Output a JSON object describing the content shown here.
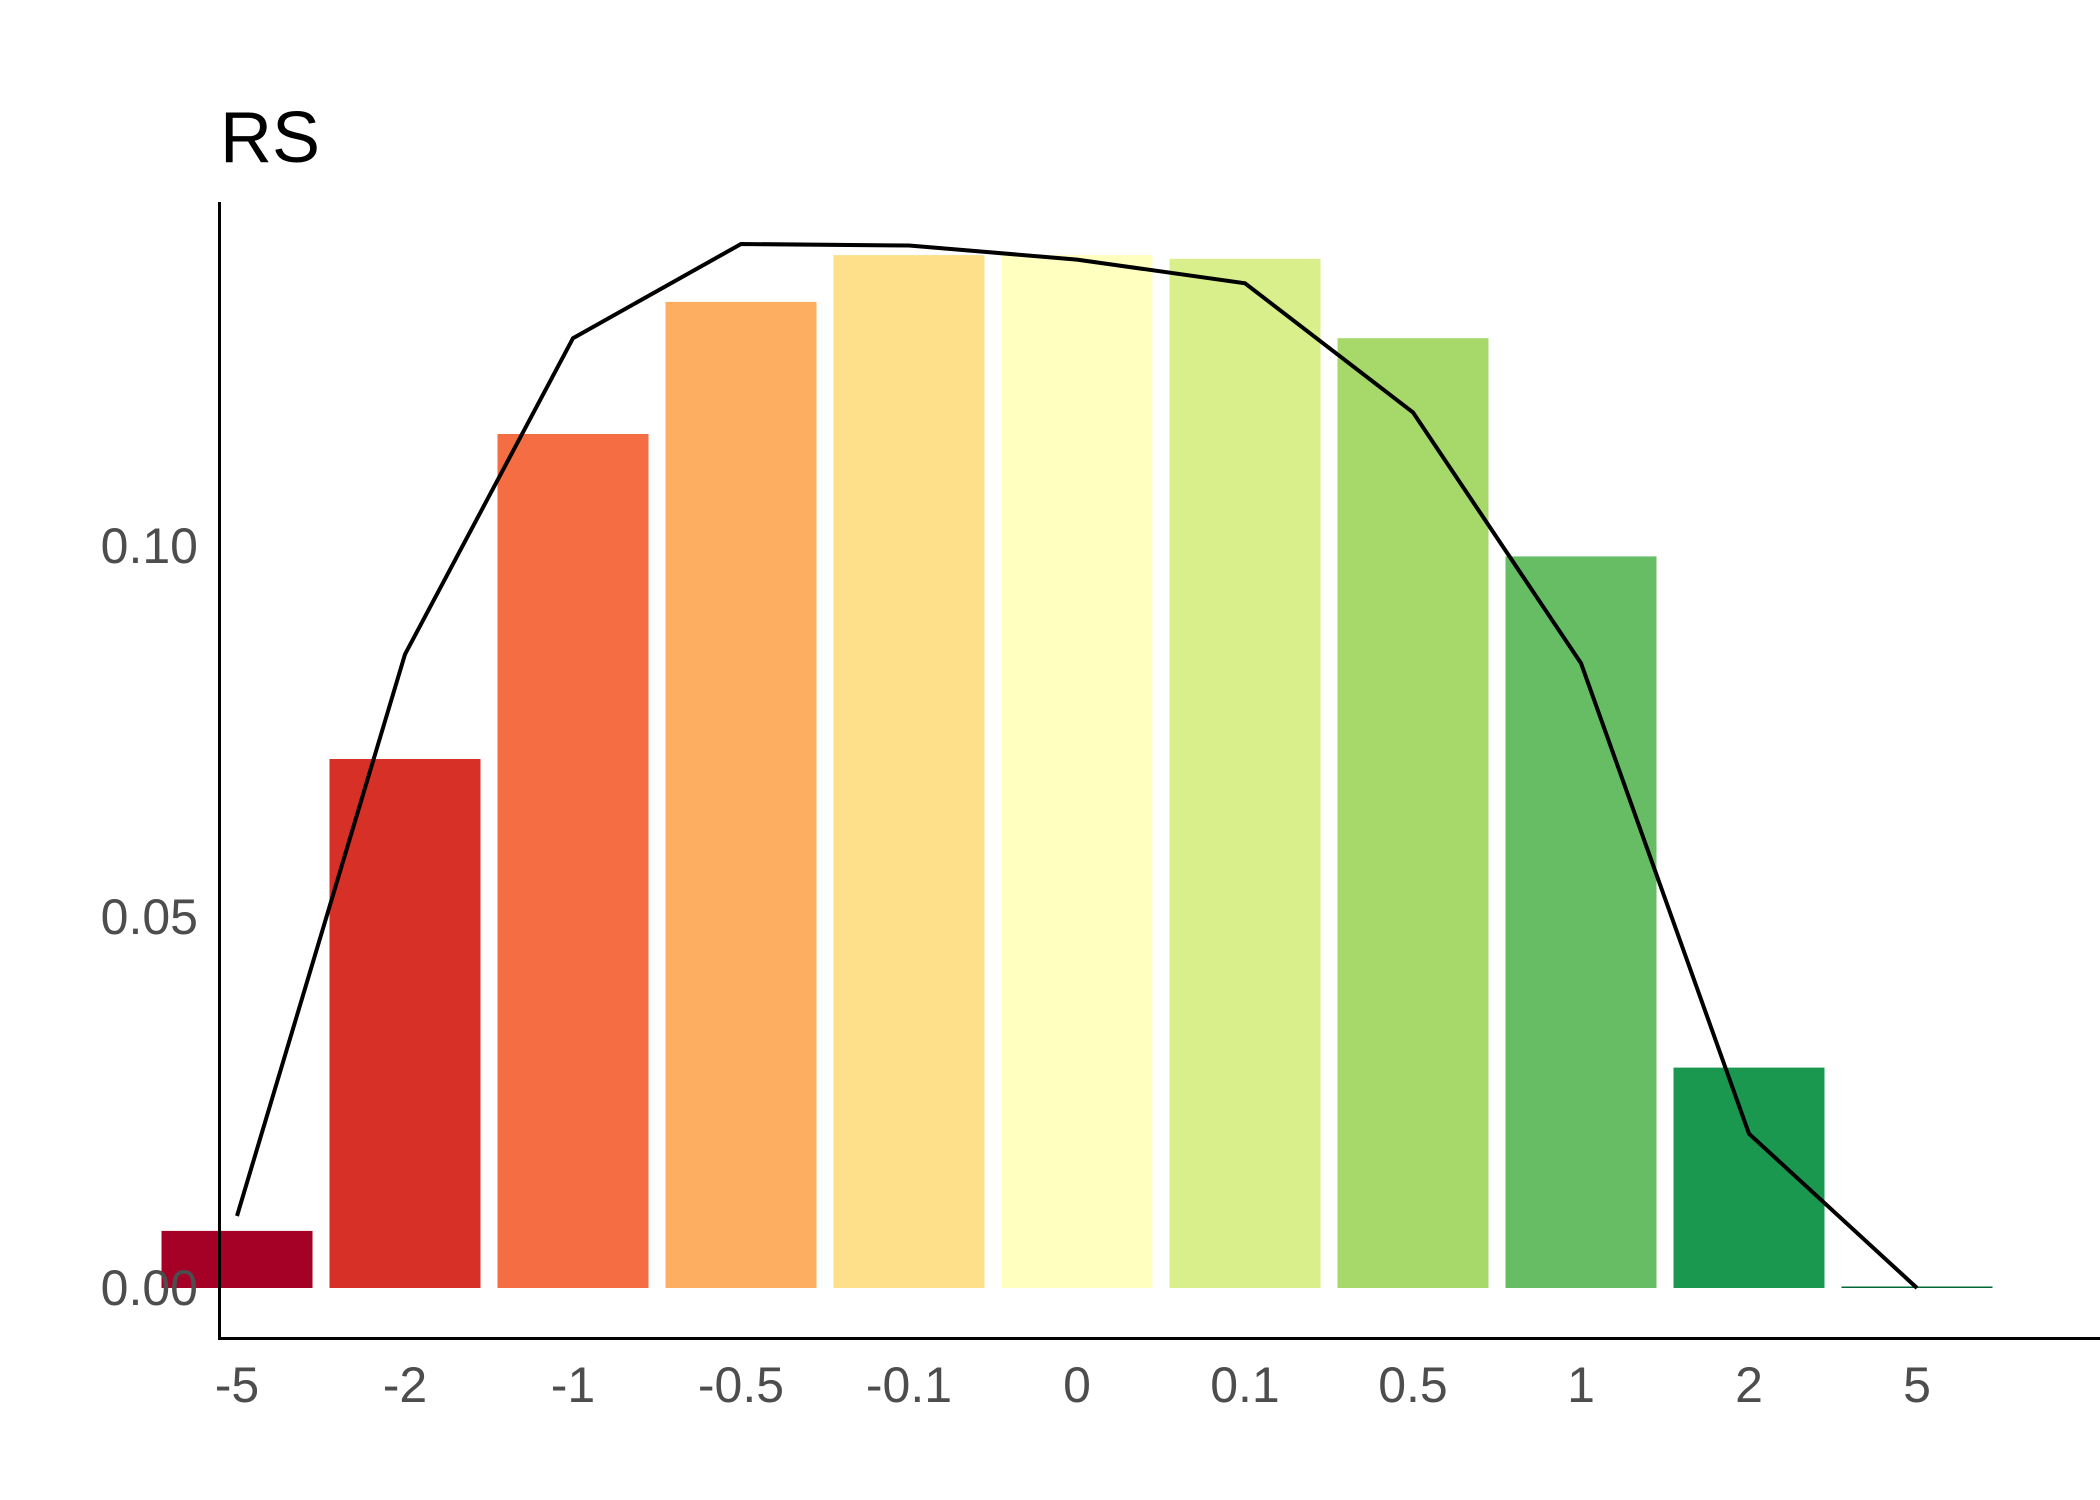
{
  "chart_data": {
    "type": "bar",
    "title": "RS",
    "xlabel": "",
    "ylabel": "",
    "categories": [
      "-5",
      "-2",
      "-1",
      "-0.5",
      "-0.1",
      "0",
      "0.1",
      "0.5",
      "1",
      "2",
      "5"
    ],
    "values": [
      0.0077,
      0.0713,
      0.1151,
      0.1329,
      0.1392,
      0.1392,
      0.1387,
      0.128,
      0.0986,
      0.0297,
      0.0002
    ],
    "line_values": [
      0.0097,
      0.0854,
      0.128,
      0.1407,
      0.1405,
      0.1386,
      0.1354,
      0.118,
      0.0842,
      0.0208,
      0.0
    ],
    "bar_colors": [
      "#a50026",
      "#d73027",
      "#f46d43",
      "#fdae61",
      "#fee08b",
      "#ffffbf",
      "#d9ef8b",
      "#a6d96a",
      "#66bd63",
      "#1a9850",
      "#006837"
    ],
    "line_color": "#000000",
    "y_ticks": [
      "0.00",
      "0.05",
      "0.10"
    ],
    "ylim": [
      -0.0067,
      0.147
    ],
    "grid": false,
    "legend": "none"
  }
}
